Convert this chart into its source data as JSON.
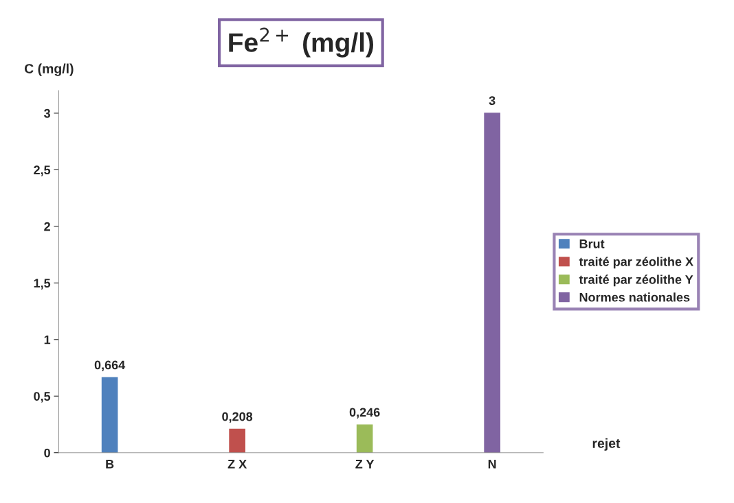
{
  "chart_data": {
    "type": "bar",
    "title": "Fe$^{2+}$ (mg/l)",
    "ylabel": "C (mg/l)",
    "xlabel": "rejet",
    "categories": [
      "B",
      "Z X",
      "Z Y",
      "N"
    ],
    "series": [
      {
        "name": "Brut",
        "color": "#4f81bd",
        "values": [
          0.664,
          null,
          null,
          null
        ],
        "value_labels": [
          "0,664",
          null,
          null,
          null
        ]
      },
      {
        "name": "traité par zéolithe X",
        "color": "#c0504d",
        "values": [
          null,
          0.208,
          null,
          null
        ],
        "value_labels": [
          null,
          "0,208",
          null,
          null
        ]
      },
      {
        "name": "traité par zéolithe Y",
        "color": "#9bbb59",
        "values": [
          null,
          null,
          0.246,
          null
        ],
        "value_labels": [
          null,
          null,
          "0,246",
          null
        ]
      },
      {
        "name": "Normes nationales",
        "color": "#8064a2",
        "values": [
          null,
          null,
          null,
          3
        ],
        "value_labels": [
          null,
          null,
          null,
          "3"
        ]
      }
    ],
    "ylim": [
      0,
      3.2
    ],
    "yticks": [
      0,
      {
        "value": 0.5,
        "label": "0,5"
      },
      1,
      {
        "value": 1.5,
        "label": "1,5"
      },
      2,
      {
        "value": 2.5,
        "label": "2,5"
      },
      3
    ],
    "grid": false,
    "legend": "right"
  }
}
